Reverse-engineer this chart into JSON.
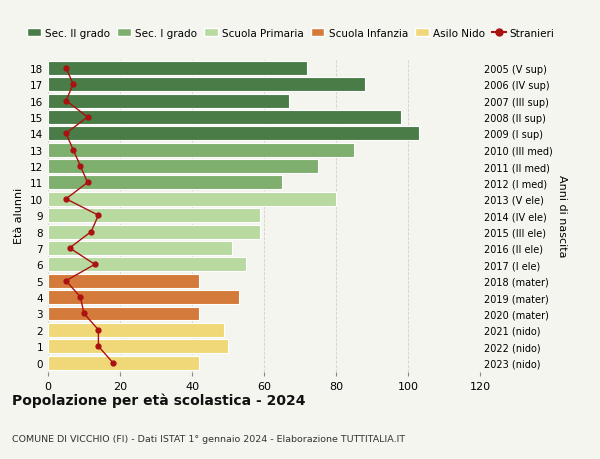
{
  "ages": [
    18,
    17,
    16,
    15,
    14,
    13,
    12,
    11,
    10,
    9,
    8,
    7,
    6,
    5,
    4,
    3,
    2,
    1,
    0
  ],
  "bar_values": [
    72,
    88,
    67,
    98,
    103,
    85,
    75,
    65,
    80,
    59,
    59,
    51,
    55,
    42,
    53,
    42,
    49,
    50,
    42
  ],
  "bar_colors": [
    "#4a7c47",
    "#4a7c47",
    "#4a7c47",
    "#4a7c47",
    "#4a7c47",
    "#7faf6e",
    "#7faf6e",
    "#7faf6e",
    "#b8d9a0",
    "#b8d9a0",
    "#b8d9a0",
    "#b8d9a0",
    "#b8d9a0",
    "#d47a3a",
    "#d47a3a",
    "#d47a3a",
    "#f0d878",
    "#f0d878",
    "#f0d878"
  ],
  "stranieri_values": [
    5,
    7,
    5,
    11,
    5,
    7,
    9,
    11,
    5,
    14,
    12,
    6,
    13,
    5,
    9,
    10,
    14,
    14,
    18
  ],
  "right_labels": [
    "2005 (V sup)",
    "2006 (IV sup)",
    "2007 (III sup)",
    "2008 (II sup)",
    "2009 (I sup)",
    "2010 (III med)",
    "2011 (II med)",
    "2012 (I med)",
    "2013 (V ele)",
    "2014 (IV ele)",
    "2015 (III ele)",
    "2016 (II ele)",
    "2017 (I ele)",
    "2018 (mater)",
    "2019 (mater)",
    "2020 (mater)",
    "2021 (nido)",
    "2022 (nido)",
    "2023 (nido)"
  ],
  "legend_labels": [
    "Sec. II grado",
    "Sec. I grado",
    "Scuola Primaria",
    "Scuola Infanzia",
    "Asilo Nido",
    "Stranieri"
  ],
  "legend_colors": [
    "#4a7c47",
    "#7faf6e",
    "#b8d9a0",
    "#d47a3a",
    "#f0d878",
    "#aa1111"
  ],
  "ylabel_left": "Età alunni",
  "ylabel_right": "Anni di nascita",
  "title": "Popolazione per età scolastica - 2024",
  "subtitle": "COMUNE DI VICCHIO (FI) - Dati ISTAT 1° gennaio 2024 - Elaborazione TUTTITALIA.IT",
  "xlim": [
    0,
    120
  ],
  "xticks": [
    0,
    20,
    40,
    60,
    80,
    100,
    120
  ],
  "background_color": "#f5f5f0",
  "grid_color": "#d0d0cc"
}
